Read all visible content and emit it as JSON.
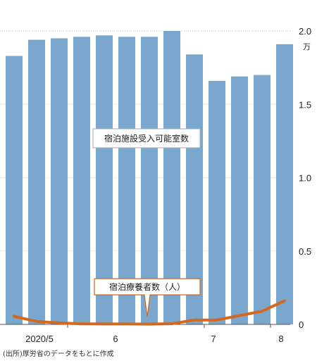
{
  "chart_data": {
    "type": "bar+line",
    "x_tick_labels": [
      "2020/5",
      "6",
      "7",
      "8"
    ],
    "unit": "万",
    "ylim": [
      0,
      2.0
    ],
    "y_ticks": [
      "2.0",
      "1.5",
      "1.0",
      "0.5",
      "0"
    ],
    "grid": true,
    "series": [
      {
        "name": "宿泊施設受入可能室数",
        "type": "bar",
        "color": "#7aa7cd",
        "values": [
          1.83,
          1.94,
          1.95,
          1.96,
          1.97,
          1.96,
          1.96,
          2.0,
          1.84,
          1.66,
          1.69,
          1.7,
          1.91
        ]
      },
      {
        "name": "宿泊療養者数（人）",
        "type": "line",
        "color": "#d2691e",
        "values": [
          0.055,
          0.02,
          0.01,
          0.004,
          0.003,
          0.003,
          0.002,
          0.005,
          0.03,
          0.03,
          0.06,
          0.09,
          0.16
        ]
      }
    ]
  },
  "source": "(出所)厚労省のデータをもとに作成"
}
